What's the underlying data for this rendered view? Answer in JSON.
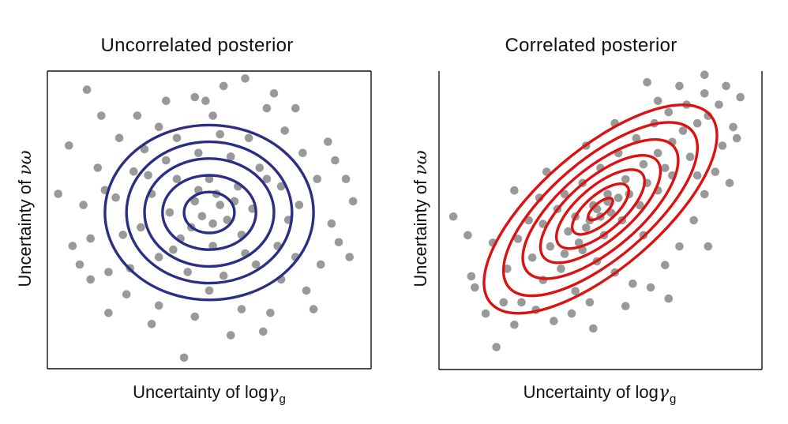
{
  "chart_data": [
    {
      "type": "scatter",
      "title": "Uncorrelated posterior",
      "xlabel": {
        "prefix": "Uncertainty of log",
        "symbol": "γ",
        "subscript": "g"
      },
      "ylabel": {
        "prefix": "Uncertainty of ",
        "symbol": "νω"
      },
      "xlim": [
        -4.5,
        4.5
      ],
      "ylim": [
        -4.2,
        3.8
      ],
      "ticks": "none",
      "grid": false,
      "point_color": "#999999",
      "contour_color": "#2a2f83",
      "contours": {
        "center": [
          0,
          0
        ],
        "correlation": 0.0,
        "radii_x": [
          0.7,
          1.3,
          1.8,
          2.3,
          2.9
        ],
        "radii_y": [
          0.55,
          1.0,
          1.45,
          1.9,
          2.35
        ]
      },
      "points": [
        [
          -3.4,
          3.3
        ],
        [
          1.0,
          3.6
        ],
        [
          -4.2,
          0.5
        ],
        [
          4.0,
          0.3
        ],
        [
          -0.7,
          -3.9
        ],
        [
          -1.4,
          2.3
        ],
        [
          -2.5,
          2.0
        ],
        [
          -1.8,
          1.7
        ],
        [
          0.1,
          2.6
        ],
        [
          1.6,
          2.8
        ],
        [
          2.1,
          2.2
        ],
        [
          2.6,
          1.6
        ],
        [
          3.0,
          0.9
        ],
        [
          3.4,
          -0.3
        ],
        [
          3.6,
          -0.8
        ],
        [
          3.1,
          -1.4
        ],
        [
          2.7,
          -2.1
        ],
        [
          1.7,
          -2.7
        ],
        [
          0.9,
          -2.6
        ],
        [
          -0.4,
          -2.8
        ],
        [
          -1.4,
          -2.5
        ],
        [
          -2.3,
          -2.2
        ],
        [
          -2.8,
          -1.6
        ],
        [
          -3.3,
          -0.7
        ],
        [
          -3.5,
          0.2
        ],
        [
          -3.1,
          1.2
        ],
        [
          -2.9,
          0.6
        ],
        [
          -2.1,
          1.1
        ],
        [
          -1.2,
          1.4
        ],
        [
          -0.3,
          1.6
        ],
        [
          0.6,
          1.5
        ],
        [
          1.4,
          1.2
        ],
        [
          2.0,
          0.7
        ],
        [
          2.2,
          -0.2
        ],
        [
          1.9,
          -0.9
        ],
        [
          1.3,
          -1.4
        ],
        [
          0.4,
          -1.7
        ],
        [
          -0.6,
          -1.6
        ],
        [
          -1.4,
          -1.2
        ],
        [
          -1.9,
          -0.4
        ],
        [
          -1.6,
          0.5
        ],
        [
          -0.9,
          0.9
        ],
        [
          0.0,
          0.9
        ],
        [
          0.8,
          0.7
        ],
        [
          1.2,
          0.1
        ],
        [
          0.9,
          -0.6
        ],
        [
          0.1,
          -0.9
        ],
        [
          -0.8,
          -0.7
        ],
        [
          -1.1,
          0.0
        ],
        [
          -0.4,
          0.3
        ],
        [
          0.3,
          0.2
        ],
        [
          0.1,
          -0.3
        ],
        [
          -0.2,
          -0.1
        ],
        [
          0.5,
          -0.2
        ],
        [
          -0.5,
          -0.4
        ],
        [
          0.2,
          0.5
        ],
        [
          -0.3,
          0.6
        ],
        [
          0.7,
          0.3
        ],
        [
          -1.0,
          -1.0
        ],
        [
          1.0,
          -1.1
        ],
        [
          1.6,
          0.9
        ],
        [
          -1.7,
          1.0
        ],
        [
          -2.4,
          -0.6
        ],
        [
          2.5,
          0.2
        ],
        [
          2.4,
          -1.2
        ],
        [
          -2.6,
          0.4
        ],
        [
          0.0,
          -2.1
        ],
        [
          0.3,
          2.1
        ],
        [
          -0.9,
          2.0
        ],
        [
          1.1,
          2.0
        ],
        [
          -2.2,
          -1.5
        ],
        [
          2.0,
          -1.8
        ],
        [
          3.8,
          0.9
        ],
        [
          -3.8,
          -0.9
        ],
        [
          3.3,
          1.9
        ],
        [
          -3.3,
          -1.8
        ],
        [
          1.5,
          -3.2
        ],
        [
          -1.6,
          -3.0
        ],
        [
          -0.1,
          3.0
        ],
        [
          -2.0,
          2.6
        ],
        [
          2.4,
          2.8
        ],
        [
          -3.9,
          1.8
        ],
        [
          3.9,
          -1.2
        ],
        [
          0.6,
          -3.3
        ],
        [
          -3.0,
          2.6
        ],
        [
          1.8,
          3.2
        ],
        [
          -1.2,
          3.0
        ],
        [
          2.9,
          -2.6
        ],
        [
          -2.8,
          -2.7
        ],
        [
          0.4,
          3.4
        ],
        [
          -0.4,
          3.1
        ],
        [
          3.5,
          1.4
        ],
        [
          -3.6,
          -1.4
        ]
      ]
    },
    {
      "type": "scatter",
      "title": "Correlated posterior",
      "xlabel": {
        "prefix": "Uncertainty of log",
        "symbol": "γ",
        "subscript": "g"
      },
      "ylabel": {
        "prefix": "Uncertainty of ",
        "symbol": "νω"
      },
      "xlim": [
        -4.5,
        4.5
      ],
      "ylim": [
        -4.2,
        3.8
      ],
      "ticks": "none",
      "grid": false,
      "point_color": "#999999",
      "contour_color": "#dd1111",
      "contours": {
        "center": [
          0,
          0.1
        ],
        "correlation": 0.75,
        "radii_x": [
          0.35,
          0.8,
          1.25,
          1.7,
          2.2,
          2.75,
          3.3
        ],
        "radii_y": [
          0.3,
          0.7,
          1.1,
          1.5,
          1.95,
          2.4,
          2.9
        ]
      },
      "points": [
        [
          -4.1,
          -0.1
        ],
        [
          -3.7,
          -0.6
        ],
        [
          -3.6,
          -1.7
        ],
        [
          -3.5,
          -2.0
        ],
        [
          -2.9,
          -3.6
        ],
        [
          -2.4,
          -3.0
        ],
        [
          -2.6,
          -1.5
        ],
        [
          -3.0,
          -0.8
        ],
        [
          -2.2,
          -2.4
        ],
        [
          -1.8,
          -2.6
        ],
        [
          -1.6,
          -1.8
        ],
        [
          -1.9,
          -1.2
        ],
        [
          -2.3,
          -0.7
        ],
        [
          -1.4,
          -0.9
        ],
        [
          -1.1,
          -1.5
        ],
        [
          -0.7,
          -2.1
        ],
        [
          -0.3,
          -2.4
        ],
        [
          -1.3,
          -2.9
        ],
        [
          -0.8,
          -2.7
        ],
        [
          -2.0,
          -0.2
        ],
        [
          -1.7,
          0.4
        ],
        [
          -1.2,
          0.1
        ],
        [
          -0.9,
          -0.5
        ],
        [
          -0.5,
          -1.0
        ],
        [
          -0.1,
          -1.3
        ],
        [
          0.4,
          -1.6
        ],
        [
          0.9,
          -1.9
        ],
        [
          1.4,
          -2.0
        ],
        [
          1.8,
          -1.4
        ],
        [
          2.2,
          -0.9
        ],
        [
          2.6,
          -0.2
        ],
        [
          2.9,
          0.5
        ],
        [
          3.2,
          1.1
        ],
        [
          3.4,
          1.8
        ],
        [
          3.7,
          2.3
        ],
        [
          3.9,
          3.1
        ],
        [
          3.5,
          3.4
        ],
        [
          2.9,
          3.2
        ],
        [
          2.4,
          2.9
        ],
        [
          1.9,
          2.7
        ],
        [
          1.5,
          2.4
        ],
        [
          1.0,
          2.0
        ],
        [
          0.5,
          1.6
        ],
        [
          0.0,
          1.2
        ],
        [
          -0.5,
          0.8
        ],
        [
          -1.0,
          0.5
        ],
        [
          -0.7,
          -0.1
        ],
        [
          -0.2,
          0.2
        ],
        [
          0.2,
          0.5
        ],
        [
          0.7,
          0.9
        ],
        [
          1.2,
          1.3
        ],
        [
          1.6,
          1.6
        ],
        [
          2.0,
          1.9
        ],
        [
          2.3,
          2.2
        ],
        [
          2.7,
          2.4
        ],
        [
          3.0,
          2.6
        ],
        [
          2.5,
          1.5
        ],
        [
          2.0,
          1.0
        ],
        [
          1.6,
          0.6
        ],
        [
          1.1,
          0.2
        ],
        [
          0.6,
          -0.2
        ],
        [
          0.1,
          -0.6
        ],
        [
          -0.4,
          -0.4
        ],
        [
          0.3,
          0.0
        ],
        [
          0.0,
          -0.1
        ],
        [
          -0.3,
          -0.2
        ],
        [
          0.2,
          0.3
        ],
        [
          0.5,
          0.4
        ],
        [
          -0.1,
          0.1
        ],
        [
          0.8,
          0.5
        ],
        [
          1.3,
          0.8
        ],
        [
          1.8,
          1.2
        ],
        [
          -0.6,
          -0.8
        ],
        [
          -1.0,
          -1.1
        ],
        [
          2.2,
          3.4
        ],
        [
          1.6,
          3.0
        ],
        [
          2.9,
          3.7
        ],
        [
          1.3,
          3.5
        ],
        [
          3.3,
          2.9
        ],
        [
          3.8,
          2.0
        ],
        [
          -3.2,
          -2.7
        ],
        [
          -2.7,
          -2.4
        ],
        [
          -0.2,
          -3.1
        ],
        [
          0.7,
          -2.5
        ],
        [
          1.9,
          -2.3
        ],
        [
          3.0,
          -0.9
        ],
        [
          3.6,
          0.8
        ],
        [
          -1.5,
          1.1
        ],
        [
          -2.4,
          0.6
        ],
        [
          0.4,
          2.4
        ],
        [
          -0.4,
          1.8
        ],
        [
          2.7,
          1.0
        ],
        [
          1.2,
          -0.6
        ],
        [
          -1.6,
          -0.3
        ]
      ]
    }
  ]
}
